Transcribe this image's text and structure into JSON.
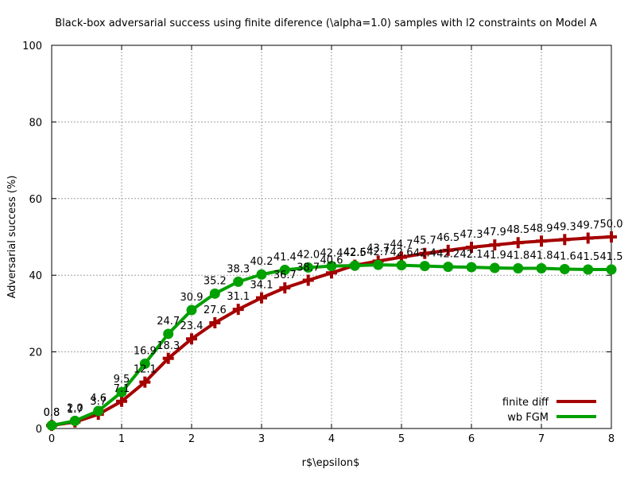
{
  "chart_data": {
    "type": "line",
    "title": "Black-box adversarial success using finite diference (\\alpha=1.0) samples with l2 constraints on Model A",
    "xlabel": "r$\\epsilon$",
    "ylabel": "Adversarial success (%)",
    "xlim": [
      0,
      8
    ],
    "ylim": [
      0,
      100
    ],
    "xticks": [
      0,
      1,
      2,
      3,
      4,
      5,
      6,
      7,
      8
    ],
    "yticks": [
      0,
      20,
      40,
      60,
      80,
      100
    ],
    "grid": true,
    "legend_position": "bottom-right",
    "x": [
      0,
      0.333,
      0.667,
      1,
      1.333,
      1.667,
      2,
      2.333,
      2.667,
      3,
      3.333,
      3.667,
      4,
      4.333,
      4.667,
      5,
      5.333,
      5.667,
      6,
      6.333,
      6.667,
      7,
      7.333,
      7.667,
      8
    ],
    "series": [
      {
        "name": "finite diff",
        "color": "#a50000",
        "marker": "plus",
        "values": [
          0.8,
          1.7,
          3.7,
          7.1,
          12.1,
          18.3,
          23.4,
          27.6,
          31.1,
          34.1,
          36.7,
          38.7,
          40.6,
          42.6,
          43.7,
          44.7,
          45.7,
          46.5,
          47.3,
          47.9,
          48.5,
          48.9,
          49.3,
          49.7,
          50.0
        ],
        "labels": [
          "0.8",
          "1.7",
          "3.7",
          "7.1",
          "12.1",
          "18.3",
          "23.4",
          "27.6",
          "31.1",
          "34.1",
          "36.7",
          "38.7",
          "40.6",
          "42.6",
          "43.7",
          "44.7",
          "45.7",
          "46.5",
          "47.3",
          "47.9",
          "48.5",
          "48.9",
          "49.3",
          "49.7",
          "50.0"
        ]
      },
      {
        "name": "wb FGM",
        "color": "#00a000",
        "marker": "circle",
        "values": [
          0.8,
          2.0,
          4.6,
          9.5,
          16.9,
          24.7,
          30.9,
          35.2,
          38.3,
          40.2,
          41.4,
          42.0,
          42.4,
          42.5,
          42.7,
          42.6,
          42.4,
          42.2,
          42.1,
          41.9,
          41.8,
          41.8,
          41.6,
          41.5,
          41.5
        ],
        "labels": [
          "0.8",
          "2.0",
          "4.6",
          "9.5",
          "16.9",
          "24.7",
          "30.9",
          "35.2",
          "38.3",
          "40.2",
          "41.4",
          "42.0",
          "42.4",
          "42.5",
          "42.7",
          "42.6",
          "42.4",
          "42.2",
          "42.1",
          "41.9",
          "41.8",
          "41.8",
          "41.6",
          "41.5",
          "41.5"
        ]
      }
    ]
  }
}
